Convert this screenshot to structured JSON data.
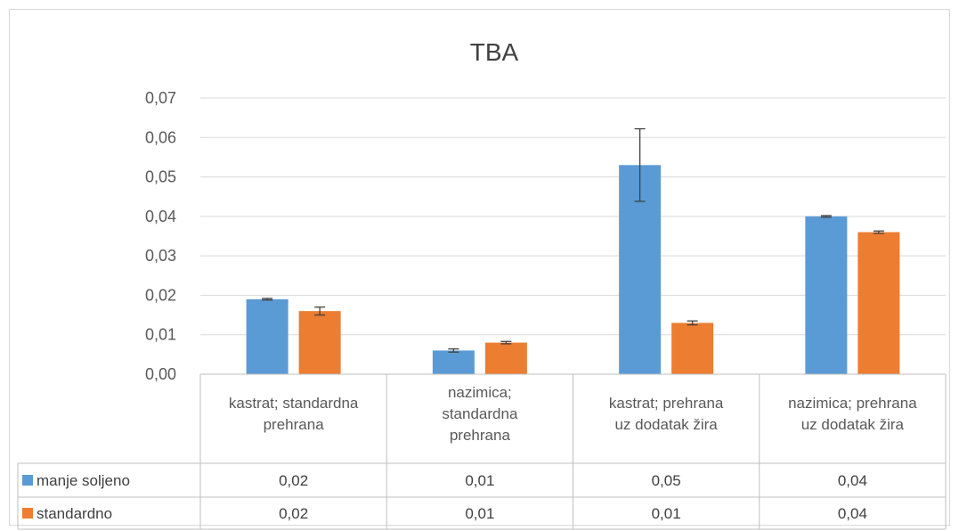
{
  "chart_data": {
    "type": "bar",
    "title": "TBA",
    "categories": [
      [
        "kastrat; standardna",
        "prehrana"
      ],
      [
        "nazimica;",
        "standardna",
        "prehrana"
      ],
      [
        "kastrat; prehrana",
        "uz dodatak žira"
      ],
      [
        "nazimica; prehrana",
        "uz dodatak žira"
      ]
    ],
    "series": [
      {
        "name": "manje soljeno",
        "color": "#5B9BD5",
        "values": [
          0.019,
          0.006,
          0.053,
          0.04
        ],
        "error": [
          0.0002,
          0.0004,
          0.0092,
          0.0002
        ],
        "table_labels": [
          "0,02",
          "0,01",
          "0,05",
          "0,04"
        ]
      },
      {
        "name": "standardno",
        "color": "#ED7D31",
        "values": [
          0.016,
          0.008,
          0.013,
          0.036
        ],
        "error": [
          0.001,
          0.0003,
          0.0005,
          0.0003
        ],
        "table_labels": [
          "0,02",
          "0,01",
          "0,01",
          "0,04"
        ]
      }
    ],
    "ylim": [
      0,
      0.07
    ],
    "yticks": [
      "0,00",
      "0,01",
      "0,02",
      "0,03",
      "0,04",
      "0,05",
      "0,06",
      "0,07"
    ],
    "grid": true,
    "legend": "data-table"
  }
}
